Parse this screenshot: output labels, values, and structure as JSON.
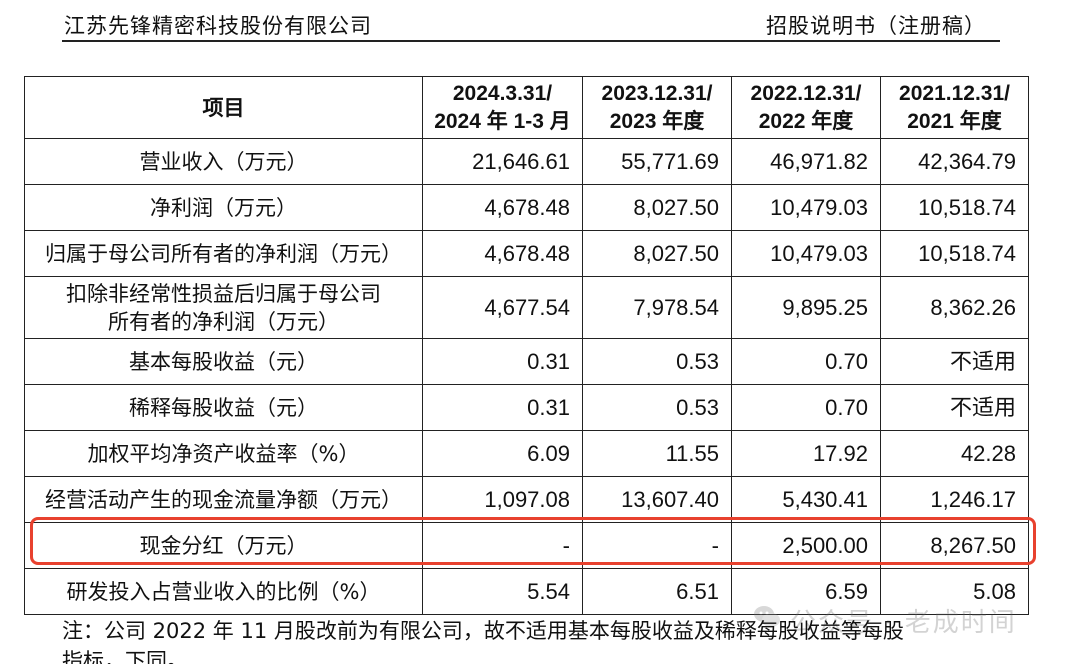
{
  "header": {
    "company": "江苏先锋精密科技股份有限公司",
    "doc_type": "招股说明书（注册稿）"
  },
  "table": {
    "columns": [
      {
        "label": "项目"
      },
      {
        "line1": "2024.3.31/",
        "line2": "2024 年 1-3 月"
      },
      {
        "line1": "2023.12.31/",
        "line2": "2023 年度"
      },
      {
        "line1": "2022.12.31/",
        "line2": "2022 年度"
      },
      {
        "line1": "2021.12.31/",
        "line2": "2021 年度"
      }
    ],
    "rows": [
      {
        "label": "营业收入（万元）",
        "values": [
          "21,646.61",
          "55,771.69",
          "46,971.82",
          "42,364.79"
        ]
      },
      {
        "label": "净利润（万元）",
        "values": [
          "4,678.48",
          "8,027.50",
          "10,479.03",
          "10,518.74"
        ]
      },
      {
        "label": "归属于母公司所有者的净利润（万元）",
        "values": [
          "4,678.48",
          "8,027.50",
          "10,479.03",
          "10,518.74"
        ]
      },
      {
        "label": "扣除非经常性损益后归属于母公司所有者的净利润（万元）",
        "label_line1": "扣除非经常性损益后归属于母公司",
        "label_line2": "所有者的净利润（万元）",
        "values": [
          "4,677.54",
          "7,978.54",
          "9,895.25",
          "8,362.26"
        ]
      },
      {
        "label": "基本每股收益（元）",
        "values": [
          "0.31",
          "0.53",
          "0.70",
          "不适用"
        ]
      },
      {
        "label": "稀释每股收益（元）",
        "values": [
          "0.31",
          "0.53",
          "0.70",
          "不适用"
        ]
      },
      {
        "label": "加权平均净资产收益率（%）",
        "values": [
          "6.09",
          "11.55",
          "17.92",
          "42.28"
        ]
      },
      {
        "label": "经营活动产生的现金流量净额（万元）",
        "values": [
          "1,097.08",
          "13,607.40",
          "5,430.41",
          "1,246.17"
        ]
      },
      {
        "label": "现金分红（万元）",
        "values": [
          "-",
          "-",
          "2,500.00",
          "8,267.50"
        ]
      },
      {
        "label": "研发投入占营业收入的比例（%）",
        "values": [
          "5.54",
          "6.51",
          "6.59",
          "5.08"
        ]
      }
    ]
  },
  "highlight": {
    "color": "#e8412e"
  },
  "note": {
    "line1": "注：公司 2022 年 11 月股改前为有限公司，故不适用基本每股收益及稀释每股收益等每股",
    "line2": "指标，下同。"
  },
  "watermark": {
    "text": "公众号 · 老成时间",
    "icon": "wechat-icon"
  }
}
